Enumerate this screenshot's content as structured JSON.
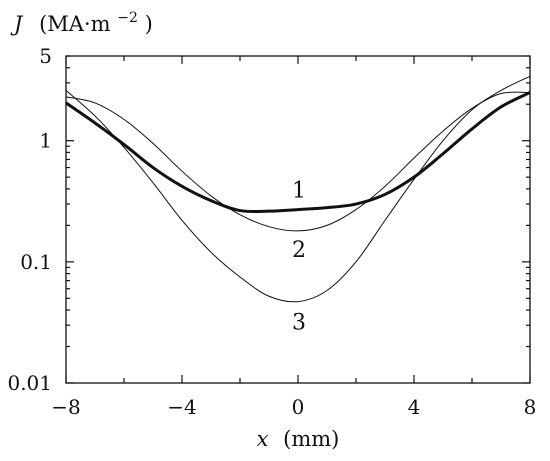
{
  "chart_data": {
    "type": "line",
    "title": "",
    "ylabel": {
      "var": "J",
      "unit_prefix": "(MA·m",
      "unit_exp": "−2",
      "unit_suffix": ")"
    },
    "xlabel": {
      "var": "x",
      "unit": "(mm)"
    },
    "xlim": [
      -8,
      8
    ],
    "ylim": [
      0.01,
      5
    ],
    "yscale": "log",
    "grid": false,
    "x_ticks": [
      -8,
      -4,
      0,
      4,
      8
    ],
    "x_tick_labels": [
      "−8",
      "−4",
      "0",
      "4",
      "8"
    ],
    "y_ticks": [
      0.01,
      0.1,
      1,
      5
    ],
    "y_tick_labels": [
      "0.01",
      "0.1",
      "1",
      "5"
    ],
    "series": [
      {
        "name": "1",
        "style": "thick",
        "x": [
          -8,
          -7,
          -6,
          -5,
          -4,
          -3,
          -2,
          -1,
          0,
          1,
          2,
          3,
          4,
          5,
          6,
          7,
          8
        ],
        "y": [
          2.05,
          1.4,
          0.93,
          0.6,
          0.42,
          0.32,
          0.265,
          0.262,
          0.27,
          0.28,
          0.3,
          0.36,
          0.5,
          0.78,
          1.25,
          1.9,
          2.5
        ]
      },
      {
        "name": "2",
        "style": "thin",
        "x": [
          -8,
          -7,
          -6,
          -5,
          -4,
          -3,
          -2,
          -1,
          0,
          1,
          2,
          3,
          4,
          5,
          6,
          7,
          8
        ],
        "y": [
          2.3,
          2.05,
          1.5,
          0.95,
          0.56,
          0.35,
          0.245,
          0.195,
          0.18,
          0.2,
          0.27,
          0.42,
          0.72,
          1.2,
          1.85,
          2.45,
          2.5
        ]
      },
      {
        "name": "3",
        "style": "thin",
        "x": [
          -8,
          -7,
          -6,
          -5,
          -4,
          -3,
          -2,
          -1,
          0,
          1,
          2,
          3,
          4,
          5,
          6,
          7,
          8
        ],
        "y": [
          2.6,
          1.6,
          0.88,
          0.45,
          0.22,
          0.12,
          0.075,
          0.052,
          0.047,
          0.058,
          0.1,
          0.22,
          0.48,
          1.0,
          1.8,
          2.6,
          3.4
        ]
      }
    ],
    "curve_labels": [
      {
        "text": "1",
        "series": "1"
      },
      {
        "text": "2",
        "series": "2"
      },
      {
        "text": "3",
        "series": "3"
      }
    ]
  }
}
